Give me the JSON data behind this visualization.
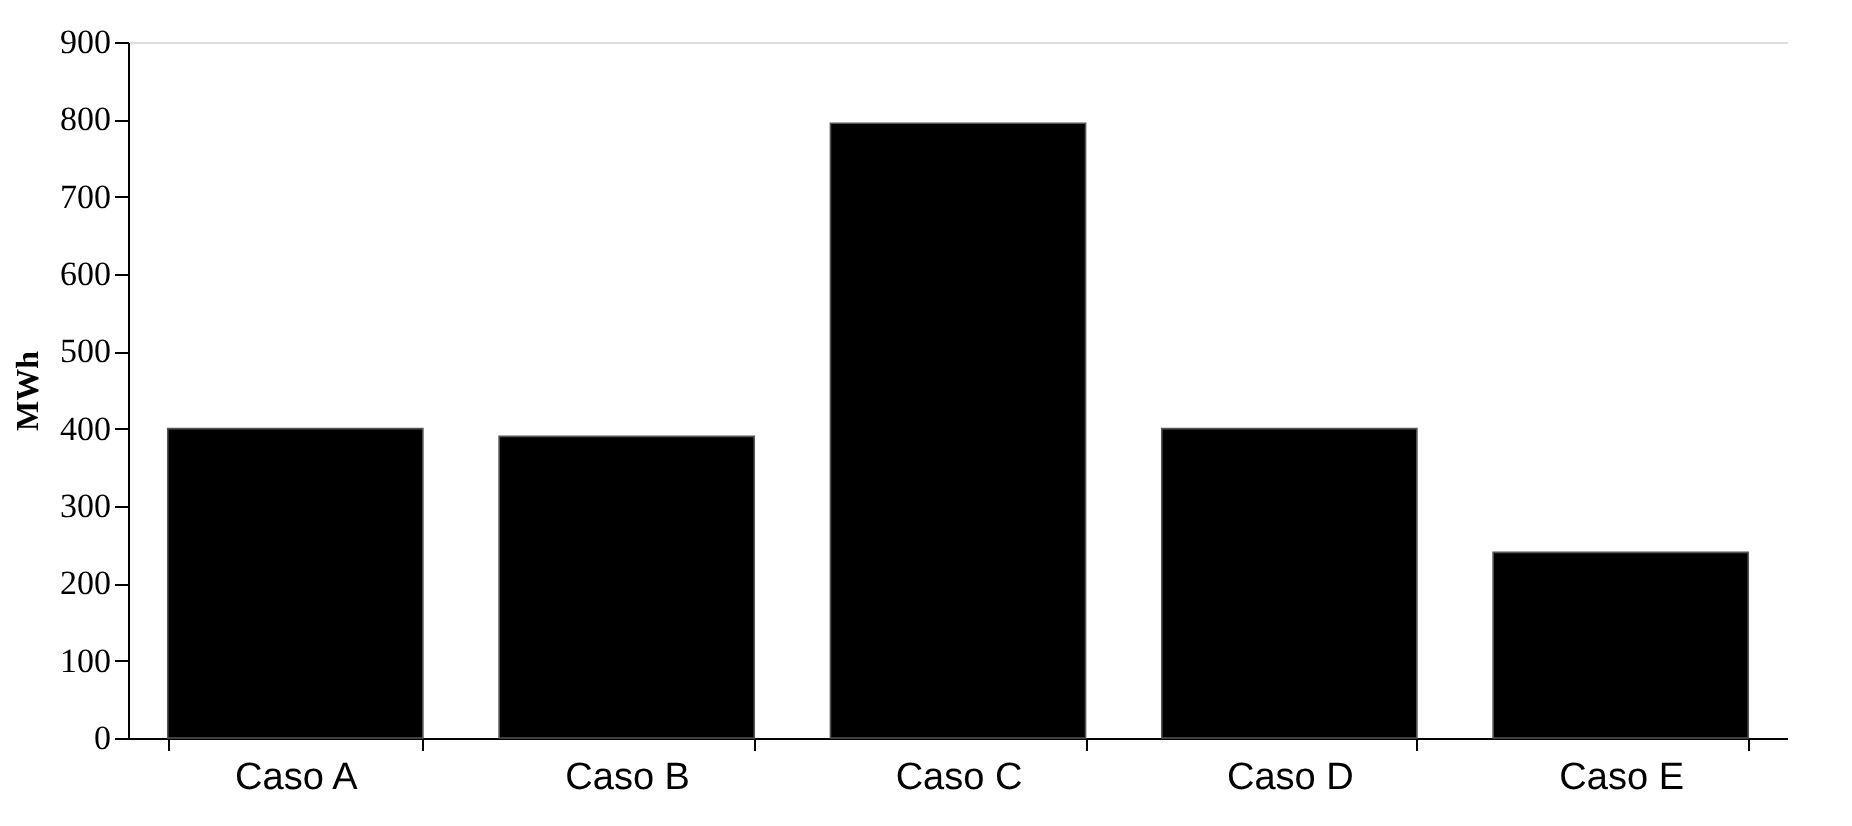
{
  "chart_data": {
    "type": "bar",
    "ylabel": "MWh",
    "categories": [
      "Caso A",
      "Caso B",
      "Caso C",
      "Caso D",
      "Caso E"
    ],
    "values": [
      400,
      390,
      795,
      400,
      240
    ],
    "color": "#000000",
    "ylim": [
      0,
      900
    ],
    "yticks": [
      0,
      100,
      200,
      300,
      400,
      500,
      600,
      700,
      800,
      900
    ],
    "grid": false
  }
}
